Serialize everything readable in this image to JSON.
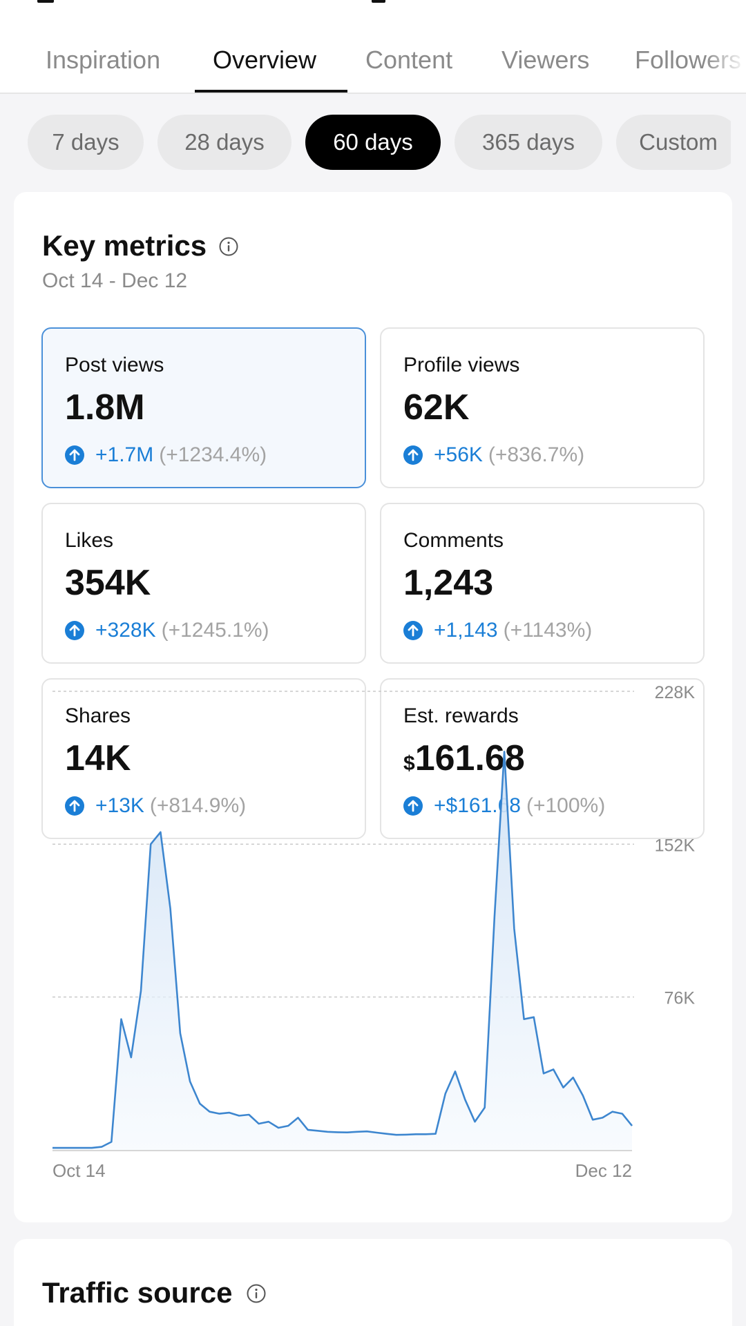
{
  "tabs": [
    {
      "label": "Inspiration",
      "active": false
    },
    {
      "label": "Overview",
      "active": true
    },
    {
      "label": "Content",
      "active": false
    },
    {
      "label": "Viewers",
      "active": false
    },
    {
      "label": "Followers",
      "active": false
    }
  ],
  "periods": [
    {
      "label": "7 days",
      "active": false
    },
    {
      "label": "28 days",
      "active": false
    },
    {
      "label": "60 days",
      "active": true
    },
    {
      "label": "365 days",
      "active": false
    },
    {
      "label": "Custom",
      "active": false
    }
  ],
  "key_metrics": {
    "title": "Key metrics",
    "date_range": "Oct 14 - Dec 12",
    "tiles": [
      {
        "label": "Post views",
        "value": "1.8M",
        "currency": "",
        "delta": "+1.7M",
        "pct": "(+1234.4%)",
        "selected": true
      },
      {
        "label": "Profile views",
        "value": "62K",
        "currency": "",
        "delta": "+56K",
        "pct": "(+836.7%)",
        "selected": false
      },
      {
        "label": "Likes",
        "value": "354K",
        "currency": "",
        "delta": "+328K",
        "pct": "(+1245.1%)",
        "selected": false
      },
      {
        "label": "Comments",
        "value": "1,243",
        "currency": "",
        "delta": "+1,143",
        "pct": "(+1143%)",
        "selected": false
      },
      {
        "label": "Shares",
        "value": "14K",
        "currency": "",
        "delta": "+13K",
        "pct": "(+814.9%)",
        "selected": false
      },
      {
        "label": "Est. rewards",
        "value": "161.68",
        "currency": "$",
        "delta": "+$161.68",
        "pct": "(+100%)",
        "selected": false
      }
    ]
  },
  "chart_data": {
    "type": "area",
    "x_start_label": "Oct 14",
    "x_end_label": "Dec 12",
    "y_ticks": [
      {
        "value": 76000,
        "label": "76K"
      },
      {
        "value": 152000,
        "label": "152K"
      },
      {
        "value": 228000,
        "label": "228K"
      }
    ],
    "ylim": [
      0,
      228000
    ],
    "grid": true,
    "series": [
      {
        "values": [
          1000,
          1000,
          1000,
          1000,
          1000,
          1500,
          4000,
          65000,
          46000,
          79000,
          152000,
          158000,
          120000,
          58000,
          34000,
          23000,
          19000,
          18000,
          18500,
          17000,
          17500,
          13000,
          14000,
          11000,
          12000,
          16000,
          10000,
          9500,
          9000,
          8800,
          8700,
          9000,
          9200,
          8600,
          8000,
          7500,
          7600,
          7800,
          7800,
          8000,
          28000,
          39000,
          25000,
          14000,
          21000,
          116000,
          198000,
          110000,
          65000,
          66000,
          38000,
          40000,
          31000,
          36000,
          27000,
          15000,
          16000,
          19000,
          18000,
          12000
        ]
      }
    ],
    "colors": {
      "line": "#3d86cf",
      "fill_top": "#cfe1f5",
      "fill_bottom": "#f3f8fd"
    }
  },
  "traffic_source": {
    "title": "Traffic source"
  },
  "colors": {
    "accent": "#1a7ed6",
    "selected_border": "#4a90d9",
    "muted_text": "#8a8a8a"
  }
}
